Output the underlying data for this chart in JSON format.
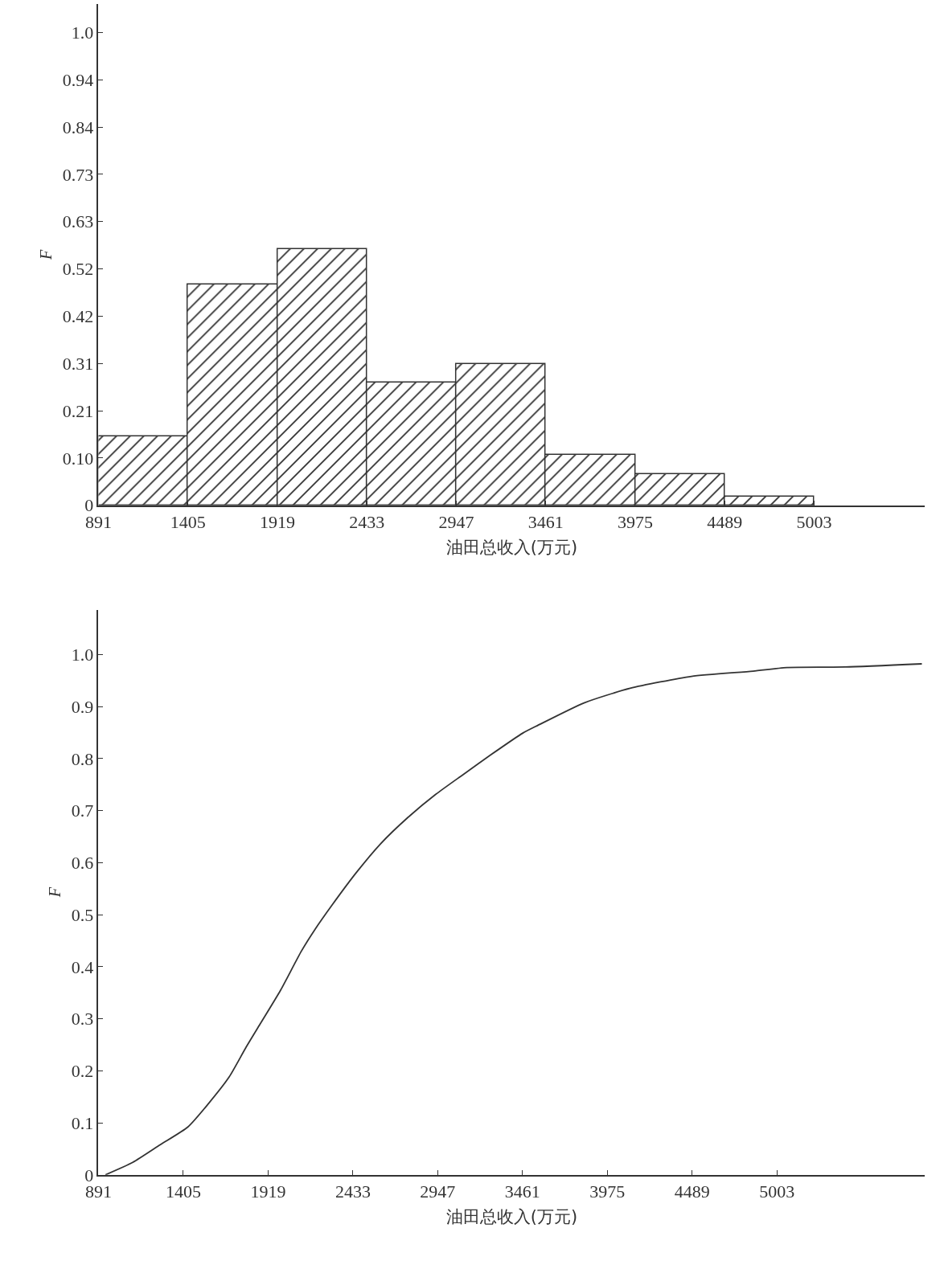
{
  "chart_data": [
    {
      "type": "histogram",
      "xlabel": "油田总收入(万元)",
      "ylabel": "F",
      "color": "#333333",
      "bins": [
        891,
        1405,
        1919,
        2433,
        2947,
        3461,
        3975,
        4489,
        5003
      ],
      "values": [
        0.153,
        0.489,
        0.568,
        0.272,
        0.312,
        0.112,
        0.069,
        0.02
      ],
      "xlim": [
        891,
        5640
      ],
      "xticks": [
        891,
        1405,
        1919,
        2433,
        2947,
        3461,
        3975,
        4489,
        5003
      ],
      "ylim": [
        0,
        1.11
      ],
      "yticks": [
        {
          "value": 0,
          "label": "0"
        },
        {
          "value": 0.1047,
          "label": "0.10"
        },
        {
          "value": 0.2094,
          "label": "0.21"
        },
        {
          "value": 0.3141,
          "label": "0.31"
        },
        {
          "value": 0.4188,
          "label": "0.42"
        },
        {
          "value": 0.5235,
          "label": "0.52"
        },
        {
          "value": 0.6282,
          "label": "0.63"
        },
        {
          "value": 0.7329,
          "label": "0.73"
        },
        {
          "value": 0.8376,
          "label": "0.84"
        },
        {
          "value": 0.9423,
          "label": "0.94"
        },
        {
          "value": 1.047,
          "label": "1.0"
        }
      ]
    },
    {
      "type": "line",
      "xlabel": "油田总收入(万元)",
      "ylabel": "F",
      "line_style": "solid",
      "marker": "none",
      "series": [
        {
          "color": "#333333",
          "x": [
            933,
            1099,
            1266,
            1433,
            1558,
            1683,
            1787,
            1871,
            1995,
            2121,
            2204,
            2308,
            2454,
            2600,
            2767,
            2934,
            3100,
            3268,
            3463,
            3555,
            3834,
            4113,
            4485,
            4858,
            5062,
            5416,
            5881
          ],
          "values": [
            0,
            0.024,
            0.058,
            0.092,
            0.137,
            0.188,
            0.246,
            0.29,
            0.355,
            0.43,
            0.472,
            0.519,
            0.581,
            0.636,
            0.687,
            0.731,
            0.769,
            0.807,
            0.849,
            0.864,
            0.907,
            0.935,
            0.958,
            0.968,
            0.975,
            0.976,
            0.982
          ]
        }
      ],
      "xlim": [
        891,
        5900
      ],
      "xticks": [
        891,
        1405,
        1919,
        2433,
        2947,
        3461,
        3975,
        4489,
        5003
      ],
      "ylim": [
        0,
        1.086
      ],
      "yticks": [
        0,
        0.1,
        0.2,
        0.3,
        0.4,
        0.5,
        0.6,
        0.7,
        0.8,
        0.9,
        {
          "value": 1.0,
          "label": "1.0"
        }
      ]
    }
  ]
}
